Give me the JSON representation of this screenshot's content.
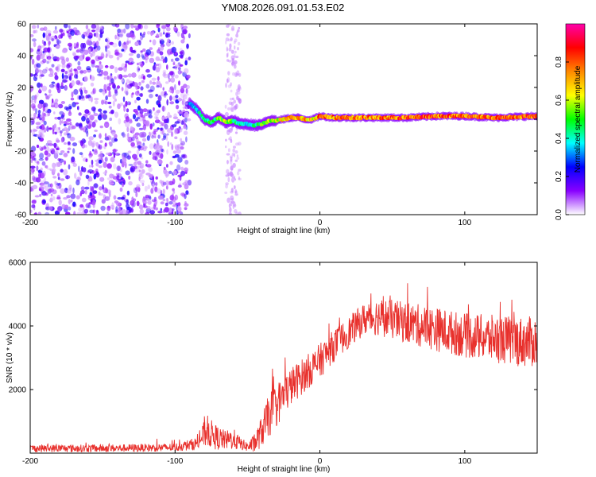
{
  "title": "YM08.2026.091.01.53.E02",
  "chart_data": [
    {
      "type": "heatmap",
      "name": "spectrogram",
      "xlabel": "Height of straight line (km)",
      "ylabel": "Frequency (Hz)",
      "xlim": [
        -200,
        150
      ],
      "ylim": [
        -60,
        60
      ],
      "x_ticks": [
        -200,
        -100,
        0,
        100
      ],
      "y_ticks": [
        -60,
        -40,
        -20,
        0,
        20,
        40,
        60
      ],
      "colorbar": {
        "label": "Normalized spectral amplitude",
        "range": [
          0.0,
          1.0
        ],
        "ticks": [
          0.0,
          0.2,
          0.4,
          0.6,
          0.8
        ],
        "tick_labels": [
          "0.0",
          "0.2",
          "0.4",
          "0.6",
          "0.8"
        ],
        "colors": [
          "#ffffff",
          "#8800ff",
          "#0000ff",
          "#00ffff",
          "#00ff00",
          "#ffff00",
          "#ff8800",
          "#ff0000",
          "#ff00aa"
        ]
      },
      "ridge_x": [
        -90,
        -85,
        -80,
        -75,
        -70,
        -65,
        -60,
        -55,
        -50,
        -45,
        -40,
        -35,
        -30,
        -25,
        -20,
        -15,
        -10,
        -5,
        0,
        10,
        20,
        40,
        60,
        80,
        100,
        120,
        150
      ],
      "ridge_freq": [
        10,
        6,
        0,
        -2,
        1,
        -2,
        -1,
        -3,
        -3,
        -4,
        -3,
        -1,
        -1,
        0,
        1,
        1,
        0,
        0,
        2,
        1,
        1,
        1,
        1,
        2,
        2,
        1,
        2
      ],
      "ridge_amplitude": [
        0.3,
        0.4,
        0.45,
        0.5,
        0.55,
        0.6,
        0.55,
        0.45,
        0.4,
        0.45,
        0.55,
        0.6,
        0.65,
        0.7,
        0.75,
        0.8,
        0.75,
        0.7,
        0.85,
        0.8,
        0.8,
        0.8,
        0.85,
        0.85,
        0.85,
        0.85,
        0.85
      ],
      "noise_region_x": [
        -200,
        -90
      ],
      "noise_band_x": [
        -65,
        -55
      ]
    },
    {
      "type": "line",
      "name": "snr",
      "xlabel": "Height of straight line (km)",
      "ylabel": "SNR (10 * v/v)",
      "xlim": [
        -200,
        150
      ],
      "ylim": [
        0,
        6000
      ],
      "x_ticks": [
        -200,
        -100,
        0,
        100
      ],
      "y_ticks": [
        2000,
        4000,
        6000
      ],
      "color": "#e8302c",
      "envelope_x": [
        -200,
        -150,
        -100,
        -85,
        -78,
        -72,
        -65,
        -60,
        -55,
        -50,
        -45,
        -40,
        -35,
        -30,
        -25,
        -20,
        -10,
        0,
        10,
        20,
        30,
        40,
        60,
        80,
        100,
        120,
        140,
        150
      ],
      "envelope_mean": [
        150,
        150,
        180,
        300,
        700,
        500,
        400,
        450,
        300,
        200,
        300,
        700,
        1200,
        1500,
        1800,
        2100,
        2500,
        2900,
        3400,
        3800,
        4200,
        4300,
        4100,
        3900,
        3700,
        3600,
        3500,
        3500
      ],
      "envelope_spread": [
        120,
        120,
        130,
        200,
        500,
        400,
        300,
        350,
        200,
        150,
        300,
        500,
        700,
        700,
        650,
        600,
        550,
        550,
        500,
        500,
        500,
        600,
        650,
        700,
        700,
        750,
        800,
        800
      ]
    }
  ]
}
